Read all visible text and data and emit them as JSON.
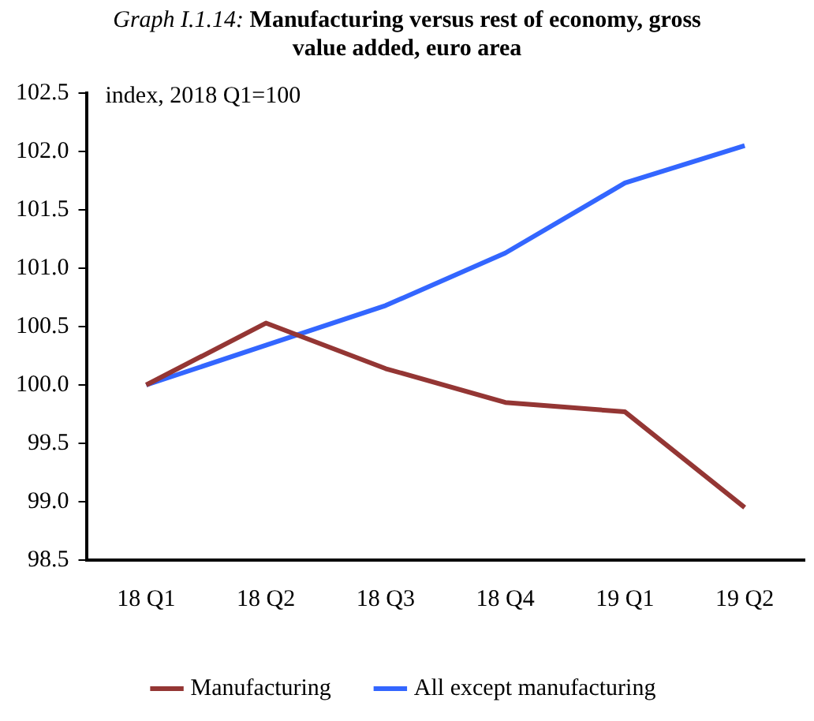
{
  "chart_data": {
    "type": "line",
    "title": "Graph I.1.14: Manufacturing versus rest of economy, gross value added, euro area",
    "ylabel": "index, 2018 Q1=100",
    "categories": [
      "18 Q1",
      "18 Q2",
      "18 Q3",
      "18 Q4",
      "19 Q1",
      "19 Q2"
    ],
    "series": [
      {
        "name": "Manufacturing",
        "color": "#943634",
        "values": [
          100.0,
          100.53,
          100.14,
          99.85,
          99.77,
          98.95
        ]
      },
      {
        "name": "All except manufacturing",
        "color": "#3366ff",
        "values": [
          100.0,
          100.34,
          100.68,
          101.13,
          101.73,
          102.05
        ]
      }
    ],
    "ylim": [
      98.5,
      102.5
    ],
    "yticks": [
      98.5,
      {
        "value": 99,
        "label": "99.0"
      },
      99.5,
      {
        "value": 100,
        "label": "100.0"
      },
      100.5,
      {
        "value": 101,
        "label": "101.0"
      },
      101.5,
      {
        "value": 102,
        "label": "102.0"
      },
      102.5
    ],
    "grid": false,
    "legend": "bottom",
    "marker": "none",
    "line_style": "solid"
  }
}
